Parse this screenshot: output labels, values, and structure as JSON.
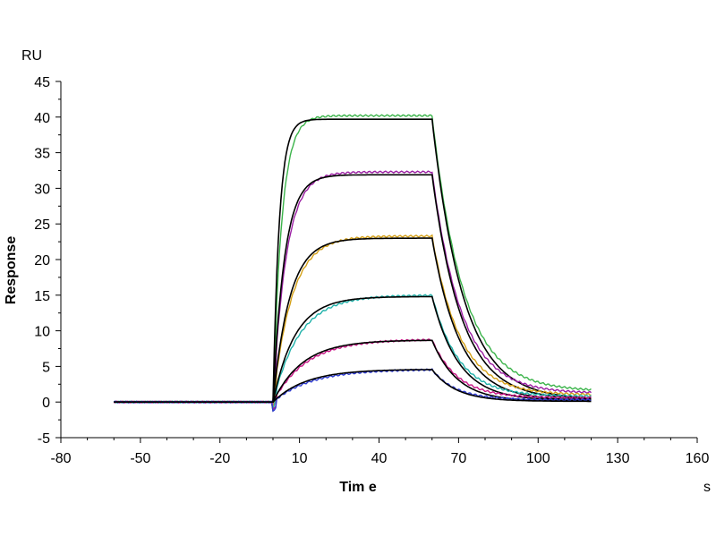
{
  "chart_data": {
    "type": "line",
    "title": "",
    "xlabel": "Tim e",
    "ylabel": "Response",
    "xunit": "s",
    "yunit": "RU",
    "xlim": [
      -80,
      160
    ],
    "ylim": [
      -5,
      45
    ],
    "xticks": [
      -80,
      -50,
      -20,
      10,
      40,
      70,
      100,
      130,
      160
    ],
    "yticks": [
      -5,
      0,
      5,
      10,
      15,
      20,
      25,
      30,
      35,
      40,
      45
    ],
    "grid": false,
    "legend": "none",
    "x_range": [
      -60,
      120
    ],
    "injection_start": 0,
    "injection_end": 60,
    "series": [
      {
        "kind": "measured",
        "color": "#3cb44b",
        "plateau": 40.2,
        "kon": 0.3,
        "koff": 0.085,
        "residual": 1.5
      },
      {
        "kind": "fit",
        "color": "#000000",
        "plateau": 39.7,
        "kon": 0.42,
        "koff": 0.085,
        "residual": 0.3
      },
      {
        "kind": "measured",
        "color": "#9b1fa3",
        "plateau": 32.3,
        "kon": 0.2,
        "koff": 0.09,
        "residual": 1.2
      },
      {
        "kind": "fit",
        "color": "#000000",
        "plateau": 31.9,
        "kon": 0.23,
        "koff": 0.09,
        "residual": 0.3
      },
      {
        "kind": "measured",
        "color": "#d4a017",
        "plateau": 23.3,
        "kon": 0.14,
        "koff": 0.095,
        "residual": 1.0
      },
      {
        "kind": "fit",
        "color": "#000000",
        "plateau": 23.0,
        "kon": 0.16,
        "koff": 0.095,
        "residual": 0.2
      },
      {
        "kind": "measured",
        "color": "#20b2aa",
        "plateau": 15.0,
        "kon": 0.1,
        "koff": 0.1,
        "residual": 0.8
      },
      {
        "kind": "fit",
        "color": "#000000",
        "plateau": 14.8,
        "kon": 0.12,
        "koff": 0.1,
        "residual": 0.2
      },
      {
        "kind": "measured",
        "color": "#c71585",
        "plateau": 8.8,
        "kon": 0.08,
        "koff": 0.105,
        "residual": 0.6
      },
      {
        "kind": "fit",
        "color": "#000000",
        "plateau": 8.7,
        "kon": 0.09,
        "koff": 0.105,
        "residual": 0.1
      },
      {
        "kind": "measured",
        "color": "#2e3bd1",
        "plateau": 4.6,
        "kon": 0.07,
        "koff": 0.11,
        "residual": 0.3
      },
      {
        "kind": "fit",
        "color": "#000000",
        "plateau": 4.6,
        "kon": 0.08,
        "koff": 0.11,
        "residual": 0.1
      }
    ]
  }
}
